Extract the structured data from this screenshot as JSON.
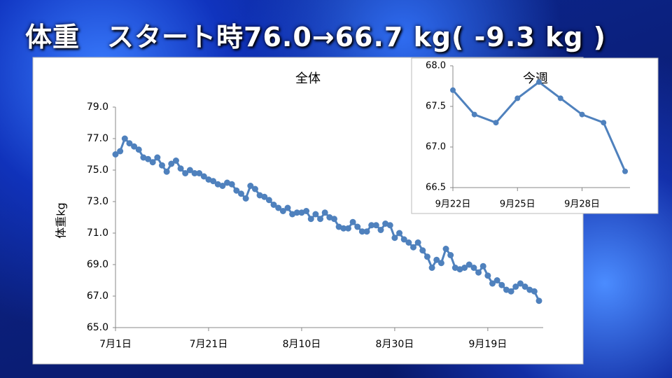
{
  "slide_title": "体重　スタート時76.0→66.7 kg( -9.3 kg )",
  "chart_data": [
    {
      "type": "line",
      "title": "全体",
      "y_label": "体重kg",
      "color": "#4f81bd",
      "categories": [
        "7月1日",
        null,
        null,
        null,
        null,
        null,
        null,
        null,
        null,
        null,
        null,
        null,
        null,
        null,
        null,
        null,
        null,
        null,
        null,
        null,
        "7月21日",
        null,
        null,
        null,
        null,
        null,
        null,
        null,
        null,
        null,
        null,
        null,
        null,
        null,
        null,
        null,
        null,
        null,
        null,
        null,
        "8月10日",
        null,
        null,
        null,
        null,
        null,
        null,
        null,
        null,
        null,
        null,
        null,
        null,
        null,
        null,
        null,
        null,
        null,
        null,
        null,
        "8月30日",
        null,
        null,
        null,
        null,
        null,
        null,
        null,
        null,
        null,
        null,
        null,
        null,
        null,
        null,
        null,
        null,
        null,
        null,
        null,
        "9月19日",
        null,
        null,
        null,
        null,
        null,
        null,
        null,
        null,
        null,
        null,
        null
      ],
      "values": [
        76.0,
        76.2,
        77.0,
        76.7,
        76.5,
        76.3,
        75.8,
        75.7,
        75.5,
        75.8,
        75.3,
        74.9,
        75.4,
        75.6,
        75.1,
        74.8,
        75.0,
        74.8,
        74.8,
        74.6,
        74.4,
        74.3,
        74.1,
        74.0,
        74.2,
        74.1,
        73.7,
        73.5,
        73.2,
        74.0,
        73.8,
        73.4,
        73.3,
        73.1,
        72.8,
        72.6,
        72.4,
        72.6,
        72.2,
        72.3,
        72.3,
        72.4,
        71.9,
        72.2,
        71.9,
        72.3,
        72.0,
        71.9,
        71.4,
        71.3,
        71.3,
        71.7,
        71.4,
        71.1,
        71.1,
        71.5,
        71.5,
        71.2,
        71.6,
        71.5,
        70.7,
        71.0,
        70.6,
        70.4,
        70.1,
        70.4,
        69.9,
        69.5,
        68.8,
        69.3,
        69.1,
        70.0,
        69.6,
        68.8,
        68.7,
        68.8,
        69.0,
        68.8,
        68.5,
        68.9,
        68.3,
        67.8,
        68.0,
        67.7,
        67.4,
        67.3,
        67.6,
        67.8,
        67.6,
        67.4,
        67.3,
        66.7
      ],
      "ylim": [
        65,
        79
      ],
      "yticks": [
        {
          "value": 65,
          "label": "65.0"
        },
        {
          "value": 67,
          "label": "67.0"
        },
        {
          "value": 69,
          "label": "69.0"
        },
        {
          "value": 71,
          "label": "71.0"
        },
        {
          "value": 73,
          "label": "73.0"
        },
        {
          "value": 75,
          "label": "75.0"
        },
        {
          "value": 77,
          "label": "77.0"
        },
        {
          "value": 79,
          "label": "79.0"
        }
      ],
      "grid": false
    },
    {
      "type": "line",
      "title": "今週",
      "color": "#4f81bd",
      "categories": [
        "9月22日",
        null,
        null,
        "9月25日",
        null,
        null,
        "9月28日",
        null,
        null
      ],
      "values": [
        67.7,
        67.4,
        67.3,
        67.6,
        67.8,
        67.6,
        67.4,
        67.3,
        66.7
      ],
      "ylim": [
        66.5,
        68
      ],
      "yticks": [
        66.5,
        {
          "value": 67,
          "label": "67.0"
        },
        67.5,
        {
          "value": 68,
          "label": "68.0"
        }
      ],
      "grid": false
    }
  ]
}
